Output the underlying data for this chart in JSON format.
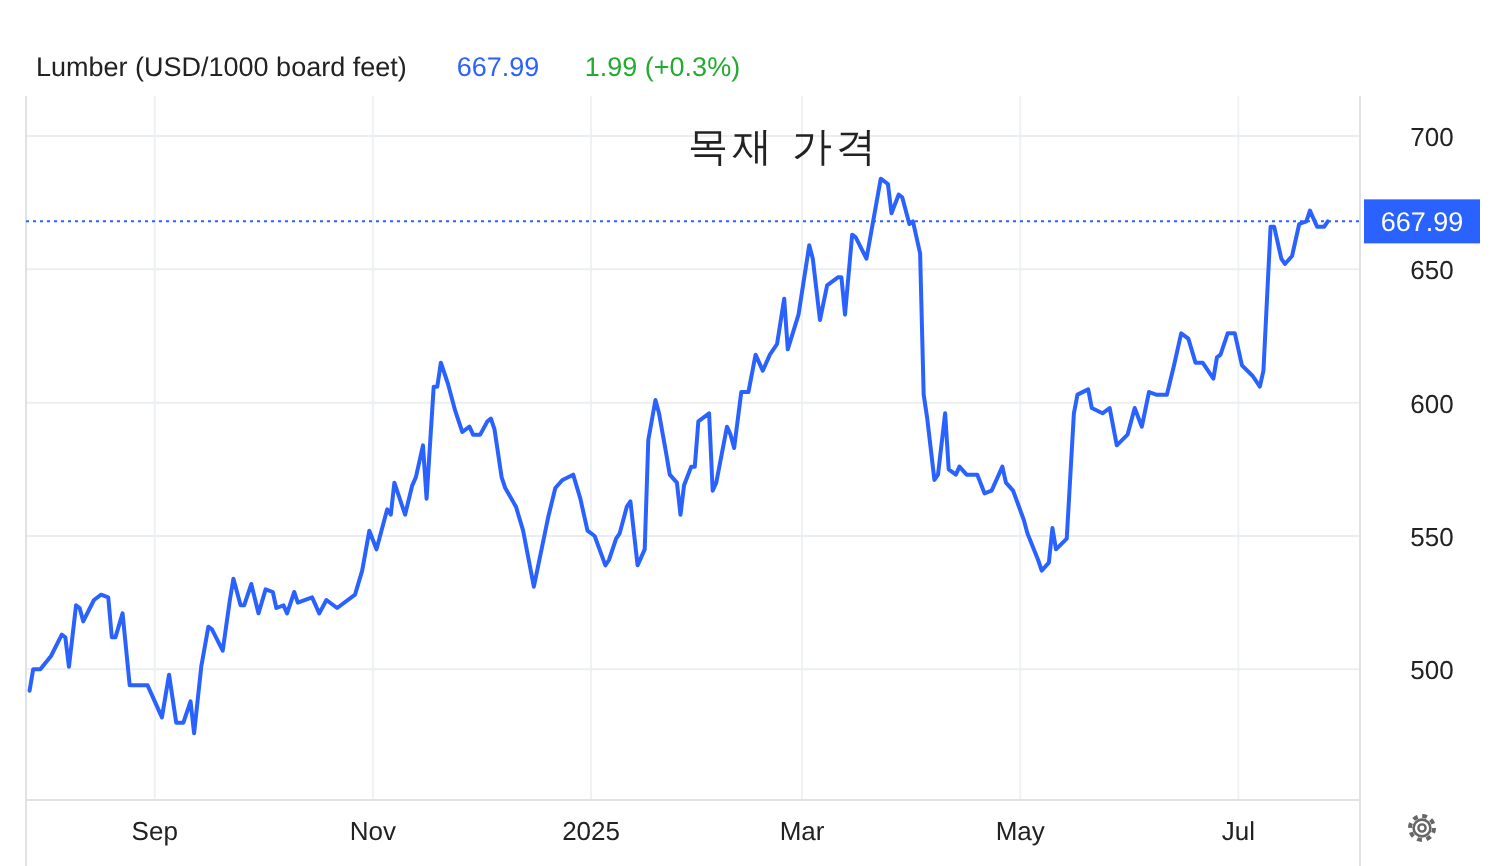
{
  "chart_data": {
    "type": "line",
    "title": "목재 가격",
    "subtitle": "Lumber (USD/1000 board feet)",
    "annotations": [
      "667.99",
      "1.99 (+0.3%)"
    ],
    "x": [
      "2024-07-28",
      "2024-07-29",
      "2024-07-31",
      "2024-08-03",
      "2024-08-06",
      "2024-08-07",
      "2024-08-08",
      "2024-08-10",
      "2024-08-11",
      "2024-08-12",
      "2024-08-15",
      "2024-08-17",
      "2024-08-19",
      "2024-08-20",
      "2024-08-21",
      "2024-08-23",
      "2024-08-25",
      "2024-08-28",
      "2024-08-30",
      "2024-08-31",
      "2024-09-03",
      "2024-09-05",
      "2024-09-07",
      "2024-09-09",
      "2024-09-11",
      "2024-09-12",
      "2024-09-14",
      "2024-09-16",
      "2024-09-17",
      "2024-09-20",
      "2024-09-22",
      "2024-09-23",
      "2024-09-25",
      "2024-09-26",
      "2024-09-28",
      "2024-09-30",
      "2024-10-02",
      "2024-10-04",
      "2024-10-05",
      "2024-10-07",
      "2024-10-08",
      "2024-10-10",
      "2024-10-11",
      "2024-10-15",
      "2024-10-17",
      "2024-10-19",
      "2024-10-22",
      "2024-10-27",
      "2024-10-29",
      "2024-10-31",
      "2024-11-02",
      "2024-11-05",
      "2024-11-06",
      "2024-11-07",
      "2024-11-10",
      "2024-11-12",
      "2024-11-13",
      "2024-11-15",
      "2024-11-16",
      "2024-11-18",
      "2024-11-19",
      "2024-11-20",
      "2024-11-22",
      "2024-11-24",
      "2024-11-26",
      "2024-11-28",
      "2024-11-29",
      "2024-12-01",
      "2024-12-03",
      "2024-12-04",
      "2024-12-05",
      "2024-12-07",
      "2024-12-08",
      "2024-12-11",
      "2024-12-13",
      "2024-12-16",
      "2024-12-20",
      "2024-12-22",
      "2024-12-24",
      "2024-12-27",
      "2024-12-29",
      "2024-12-31",
      "2025-01-02",
      "2025-01-05",
      "2025-01-06",
      "2025-01-08",
      "2025-01-09",
      "2025-01-11",
      "2025-01-12",
      "2025-01-13",
      "2025-01-14",
      "2025-01-16",
      "2025-01-17",
      "2025-01-19",
      "2025-01-20",
      "2025-01-22",
      "2025-01-23",
      "2025-01-25",
      "2025-01-26",
      "2025-01-27",
      "2025-01-29",
      "2025-01-30",
      "2025-01-31",
      "2025-02-03",
      "2025-02-04",
      "2025-02-05",
      "2025-02-07",
      "2025-02-08",
      "2025-02-09",
      "2025-02-10",
      "2025-02-12",
      "2025-02-14",
      "2025-02-16",
      "2025-02-18",
      "2025-02-20",
      "2025-02-22",
      "2025-02-24",
      "2025-02-25",
      "2025-02-28",
      "2025-03-03",
      "2025-03-04",
      "2025-03-06",
      "2025-03-08",
      "2025-03-11",
      "2025-03-12",
      "2025-03-13",
      "2025-03-15",
      "2025-03-16",
      "2025-03-19",
      "2025-03-21",
      "2025-03-23",
      "2025-03-25",
      "2025-03-26",
      "2025-03-28",
      "2025-03-29",
      "2025-03-31",
      "2025-04-01",
      "2025-04-03",
      "2025-04-04",
      "2025-04-05",
      "2025-04-07",
      "2025-04-08",
      "2025-04-10",
      "2025-04-11",
      "2025-04-13",
      "2025-04-14",
      "2025-04-16",
      "2025-04-18",
      "2025-04-19",
      "2025-04-21",
      "2025-04-23",
      "2025-04-26",
      "2025-04-27",
      "2025-04-29",
      "2025-05-02",
      "2025-05-03",
      "2025-05-06",
      "2025-05-07",
      "2025-05-09",
      "2025-05-10",
      "2025-05-11",
      "2025-05-14",
      "2025-05-16",
      "2025-05-17",
      "2025-05-20",
      "2025-05-21",
      "2025-05-24",
      "2025-05-26",
      "2025-05-28",
      "2025-05-31",
      "2025-06-02",
      "2025-06-04",
      "2025-06-06",
      "2025-06-08",
      "2025-06-11",
      "2025-06-13",
      "2025-06-15",
      "2025-06-17",
      "2025-06-19",
      "2025-06-21",
      "2025-06-24",
      "2025-06-25",
      "2025-06-26",
      "2025-06-28",
      "2025-06-30",
      "2025-07-02",
      "2025-07-05",
      "2025-07-07",
      "2025-07-08",
      "2025-07-10",
      "2025-07-11",
      "2025-07-13",
      "2025-07-14",
      "2025-07-16",
      "2025-07-18",
      "2025-07-20",
      "2025-07-21",
      "2025-07-23",
      "2025-07-25",
      "2025-07-26"
    ],
    "series": [
      {
        "color": "#2962ff",
        "values": [
          492,
          500,
          500,
          505,
          513,
          512,
          501,
          524,
          523,
          518,
          526,
          528,
          527,
          512,
          512,
          521,
          494,
          494,
          494,
          491,
          482,
          498,
          480,
          480,
          488,
          476,
          501,
          516,
          515,
          507,
          526,
          534,
          524,
          524,
          532,
          521,
          530,
          529,
          523,
          524,
          521,
          529,
          525,
          527,
          521,
          526,
          523,
          528,
          537,
          552,
          545,
          560,
          558,
          570,
          558,
          569,
          572,
          584,
          564,
          606,
          606,
          615,
          607,
          597,
          589,
          591,
          588,
          588,
          593,
          594,
          590,
          572,
          568,
          561,
          552,
          531,
          557,
          568,
          571,
          573,
          564,
          552,
          550,
          539,
          541,
          549,
          551,
          561,
          563,
          551,
          539,
          545,
          586,
          601,
          596,
          581,
          573,
          570,
          558,
          569,
          576,
          576,
          593,
          596,
          567,
          570,
          584,
          591,
          588,
          583,
          604,
          604,
          618,
          612,
          618,
          622,
          639,
          620,
          633,
          659,
          654,
          631,
          644,
          647,
          647,
          633,
          663,
          662,
          654,
          669,
          684,
          682,
          671,
          678,
          677,
          667,
          668,
          656,
          603,
          594,
          571,
          573,
          596,
          575,
          573,
          576,
          573,
          573,
          573,
          566,
          567,
          576,
          570,
          567,
          556,
          551,
          541,
          537,
          540,
          553,
          545,
          549,
          596,
          603,
          605,
          598,
          596,
          598,
          584,
          588,
          598,
          591,
          604,
          603,
          603,
          614,
          626,
          624,
          615,
          615,
          609,
          617,
          618,
          626,
          626,
          614,
          610,
          606,
          612,
          666,
          666,
          654,
          652,
          655,
          667,
          668,
          672,
          666,
          666,
          667.99
        ]
      }
    ],
    "xlim": [
      "2024-07-27",
      "2025-08-04"
    ],
    "xticks": [
      {
        "value": "2024-09-01",
        "label": "Sep"
      },
      {
        "value": "2024-11-01",
        "label": "Nov"
      },
      {
        "value": "2025-01-01",
        "label": "2025"
      },
      {
        "value": "2025-03-01",
        "label": "Mar"
      },
      {
        "value": "2025-05-01",
        "label": "May"
      },
      {
        "value": "2025-07-01",
        "label": "Jul"
      }
    ],
    "ylim": [
      451,
      715
    ],
    "yticks": [
      500,
      550,
      600,
      650,
      700
    ],
    "ref_lines": [
      {
        "axis": "y",
        "value": 667.99,
        "label": "667.99",
        "color": "#2962ff",
        "line_style": "dotted"
      }
    ],
    "grid": true,
    "marker": "none",
    "line_style": "solid"
  }
}
